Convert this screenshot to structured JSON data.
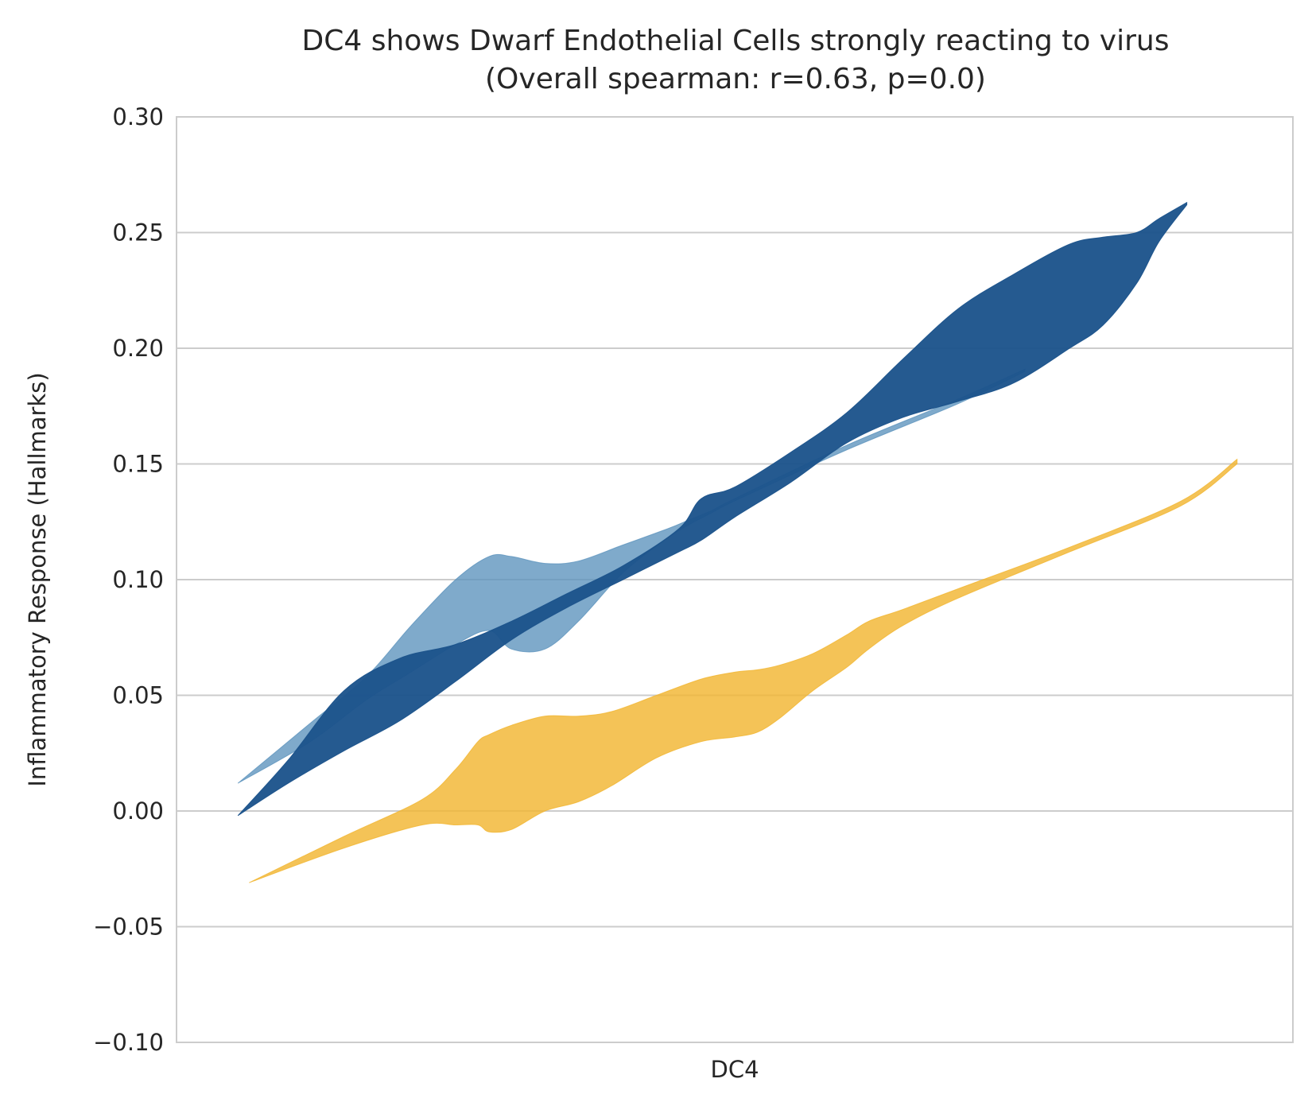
{
  "chart_data": {
    "type": "area",
    "title_lines": [
      "DC4 shows Dwarf Endothelial Cells strongly reacting to virus",
      "(Overall spearman: r=0.63, p=0.0)"
    ],
    "xlabel": "DC4",
    "ylabel": "Inflammatory Response (Hallmarks)",
    "ylim": [
      -0.1,
      0.3
    ],
    "xlim": [
      0,
      1
    ],
    "yticks": [
      -0.1,
      -0.05,
      0.0,
      0.05,
      0.1,
      0.15,
      0.2,
      0.25,
      0.3
    ],
    "ytick_labels": [
      "−0.10",
      "−0.05",
      "0.00",
      "0.05",
      "0.10",
      "0.15",
      "0.20",
      "0.25",
      "0.30"
    ],
    "grid": "horizontal",
    "series": [
      {
        "color": "#f2b632",
        "opacity": 0.82,
        "x": [
          0.065,
          0.15,
          0.22,
          0.25,
          0.27,
          0.28,
          0.3,
          0.33,
          0.36,
          0.39,
          0.43,
          0.47,
          0.5,
          0.52,
          0.54,
          0.57,
          0.6,
          0.62,
          0.65,
          0.7,
          0.8,
          0.9,
          0.95
        ],
        "upper": [
          -0.031,
          -0.011,
          0.005,
          0.018,
          0.03,
          0.033,
          0.037,
          0.041,
          0.041,
          0.043,
          0.05,
          0.057,
          0.06,
          0.061,
          0.063,
          0.068,
          0.076,
          0.082,
          0.087,
          0.096,
          0.114,
          0.134,
          0.152
        ],
        "lower": [
          -0.031,
          -0.016,
          -0.006,
          -0.006,
          -0.006,
          -0.009,
          -0.008,
          0.0,
          0.004,
          0.011,
          0.023,
          0.03,
          0.032,
          0.034,
          0.04,
          0.052,
          0.062,
          0.07,
          0.08,
          0.092,
          0.112,
          0.132,
          0.15
        ]
      },
      {
        "color": "#5b92bd",
        "opacity": 0.78,
        "x": [
          0.055,
          0.12,
          0.17,
          0.21,
          0.25,
          0.28,
          0.3,
          0.33,
          0.36,
          0.4,
          0.44,
          0.46,
          0.48,
          0.5,
          0.6,
          0.7,
          0.76
        ],
        "upper": [
          0.012,
          0.038,
          0.058,
          0.08,
          0.1,
          0.11,
          0.11,
          0.107,
          0.108,
          0.115,
          0.122,
          0.126,
          0.13,
          0.135,
          0.158,
          0.178,
          0.191
        ],
        "lower": [
          0.012,
          0.03,
          0.048,
          0.06,
          0.072,
          0.078,
          0.07,
          0.07,
          0.082,
          0.103,
          0.118,
          0.124,
          0.129,
          0.134,
          0.156,
          0.176,
          0.19
        ]
      },
      {
        "color": "#1c538b",
        "opacity": 0.96,
        "x": [
          0.055,
          0.1,
          0.15,
          0.2,
          0.25,
          0.3,
          0.35,
          0.4,
          0.45,
          0.47,
          0.5,
          0.55,
          0.6,
          0.65,
          0.7,
          0.75,
          0.8,
          0.83,
          0.86,
          0.88,
          0.905
        ],
        "upper": [
          -0.002,
          0.022,
          0.052,
          0.066,
          0.072,
          0.082,
          0.094,
          0.106,
          0.122,
          0.135,
          0.14,
          0.155,
          0.172,
          0.195,
          0.217,
          0.232,
          0.245,
          0.248,
          0.25,
          0.256,
          0.263
        ],
        "lower": [
          -0.002,
          0.012,
          0.026,
          0.039,
          0.056,
          0.074,
          0.088,
          0.1,
          0.112,
          0.117,
          0.127,
          0.142,
          0.159,
          0.17,
          0.177,
          0.185,
          0.2,
          0.21,
          0.228,
          0.246,
          0.262
        ]
      }
    ]
  }
}
